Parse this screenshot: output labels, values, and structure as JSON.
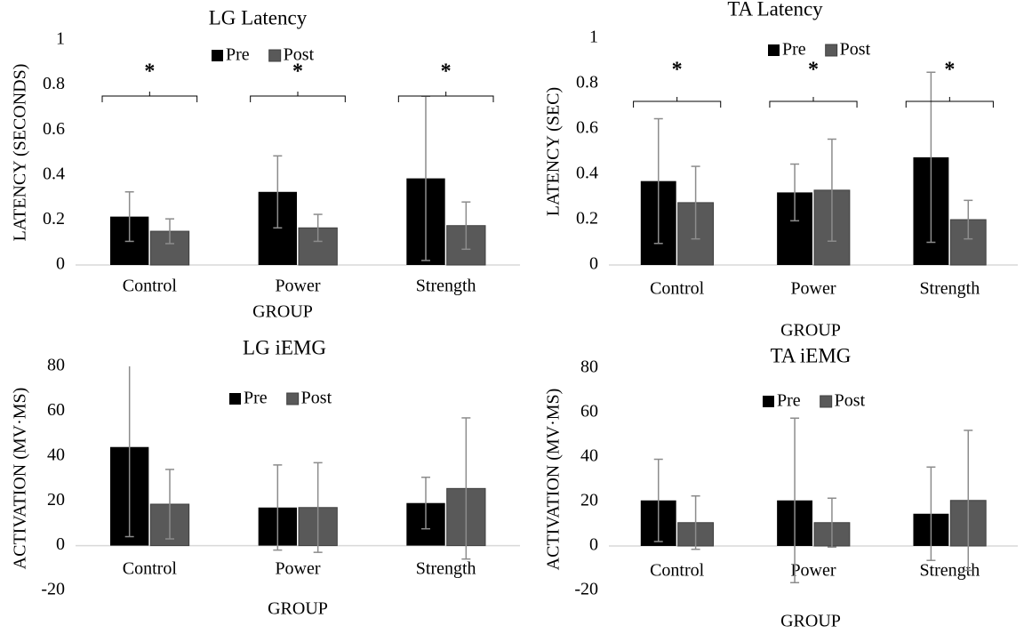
{
  "chart_data": [
    {
      "type": "bar",
      "title": "LG Latency",
      "xlabel": "GROUP",
      "ylabel": "LATENCY (SECONDS)",
      "categories": [
        "Control",
        "Power",
        "Strength"
      ],
      "series": [
        {
          "name": "Pre",
          "color": "#000000",
          "values": [
            0.215,
            0.325,
            0.385
          ],
          "errors": [
            0.11,
            0.16,
            0.365
          ]
        },
        {
          "name": "Post",
          "color": "#595959",
          "values": [
            0.15,
            0.165,
            0.175
          ],
          "errors": [
            0.055,
            0.06,
            0.105
          ]
        }
      ],
      "ylim": [
        0,
        1
      ],
      "yticks": [
        0,
        0.2,
        0.4,
        0.6,
        0.8,
        1
      ],
      "error_color": "#8c8c8c",
      "annotations": [
        "*",
        "*",
        "*"
      ]
    },
    {
      "type": "bar",
      "title": "TA Latency",
      "xlabel": "GROUP",
      "ylabel": "LATENCY (SEC)",
      "categories": [
        "Control",
        "Power",
        "Strength"
      ],
      "series": [
        {
          "name": "Pre",
          "color": "#000000",
          "values": [
            0.37,
            0.32,
            0.475
          ],
          "errors": [
            0.275,
            0.125,
            0.375
          ]
        },
        {
          "name": "Post",
          "color": "#595959",
          "values": [
            0.275,
            0.33,
            0.2
          ],
          "errors": [
            0.16,
            0.225,
            0.085
          ]
        }
      ],
      "ylim": [
        0,
        1
      ],
      "yticks": [
        0,
        0.2,
        0.4,
        0.6,
        0.8,
        1
      ],
      "error_color": "#8c8c8c",
      "annotations": [
        "*",
        "*",
        "*"
      ]
    },
    {
      "type": "bar",
      "title": "LG iEMG",
      "xlabel": "GROUP",
      "ylabel": "ACTIVATION (MV·MS)",
      "categories": [
        "Control",
        "Power",
        "Strength"
      ],
      "series": [
        {
          "name": "Pre",
          "color": "#000000",
          "values": [
            44,
            17,
            19
          ],
          "errors": [
            40,
            19,
            11.5
          ]
        },
        {
          "name": "Post",
          "color": "#595959",
          "values": [
            18.5,
            17,
            25.5
          ],
          "errors": [
            15.5,
            20,
            31.5
          ]
        }
      ],
      "ylim": [
        -20,
        80
      ],
      "yticks": [
        -20,
        0,
        20,
        40,
        60,
        80
      ],
      "error_color": "#8c8c8c"
    },
    {
      "type": "bar",
      "title": "TA iEMG",
      "xlabel": "GROUP",
      "ylabel": "ACTIVATION (MV·MS)",
      "categories": [
        "Control",
        "Power",
        "Strength"
      ],
      "series": [
        {
          "name": "Pre",
          "color": "#000000",
          "values": [
            20.5,
            20.5,
            14.5
          ],
          "errors": [
            18.5,
            37,
            21
          ]
        },
        {
          "name": "Post",
          "color": "#595959",
          "values": [
            10.5,
            10.5,
            20.5
          ],
          "errors": [
            12,
            11,
            31.5
          ]
        }
      ],
      "ylim": [
        -20,
        80
      ],
      "yticks": [
        -20,
        0,
        20,
        40,
        60,
        80
      ],
      "error_color": "#8c8c8c"
    }
  ]
}
